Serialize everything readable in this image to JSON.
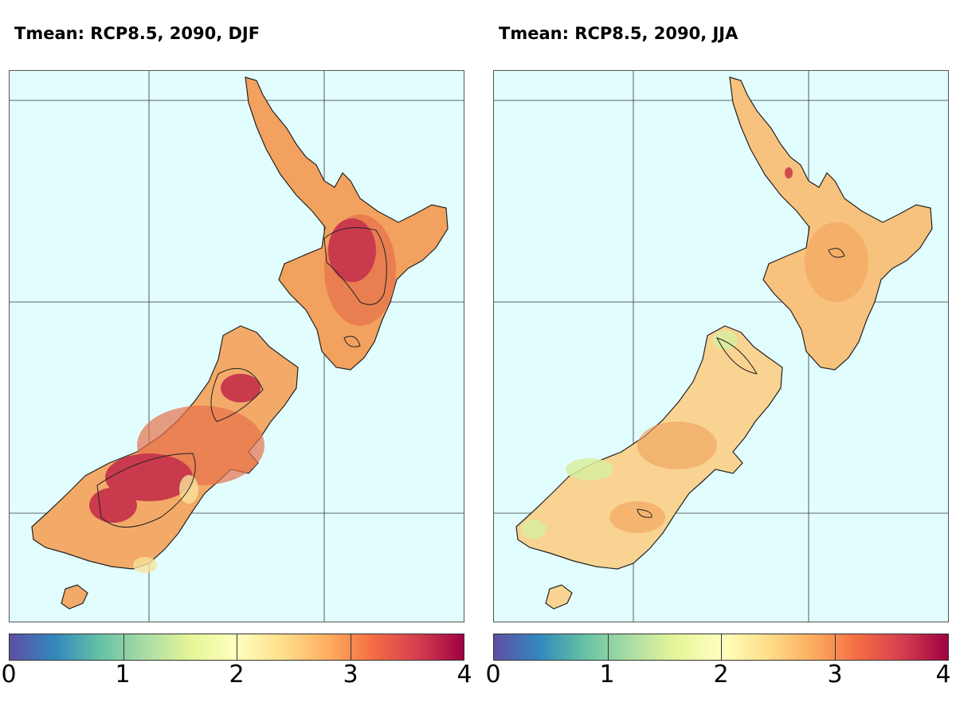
{
  "panels": [
    {
      "title": "Tmean: RCP8.5, 2090, DJF",
      "season": "DJF",
      "north_island_color": "#f2a25e",
      "south_island_color": "#f3aa68",
      "hotspot_color": "#c83a4c",
      "warm_color": "#e6714c",
      "cool_color": "#f7e29a"
    },
    {
      "title": "Tmean: RCP8.5, 2090, JJA",
      "season": "JJA",
      "north_island_color": "#f7c27d",
      "south_island_color": "#f9d391",
      "hotspot_color": "#d24a4b",
      "warm_color": "#f2a15c",
      "cool_color": "#d8ed9f"
    }
  ],
  "colorbar": {
    "ticks": [
      "0",
      "1",
      "2",
      "3",
      "4"
    ],
    "min": 0,
    "max": 4,
    "colors": [
      "#5e4fa2",
      "#3288bd",
      "#66c2a5",
      "#abdda4",
      "#e6f598",
      "#ffffbf",
      "#fee08b",
      "#fdae61",
      "#f46d43",
      "#d53e4f",
      "#9e0142"
    ]
  },
  "ocean_color": "#e2fdfe"
}
